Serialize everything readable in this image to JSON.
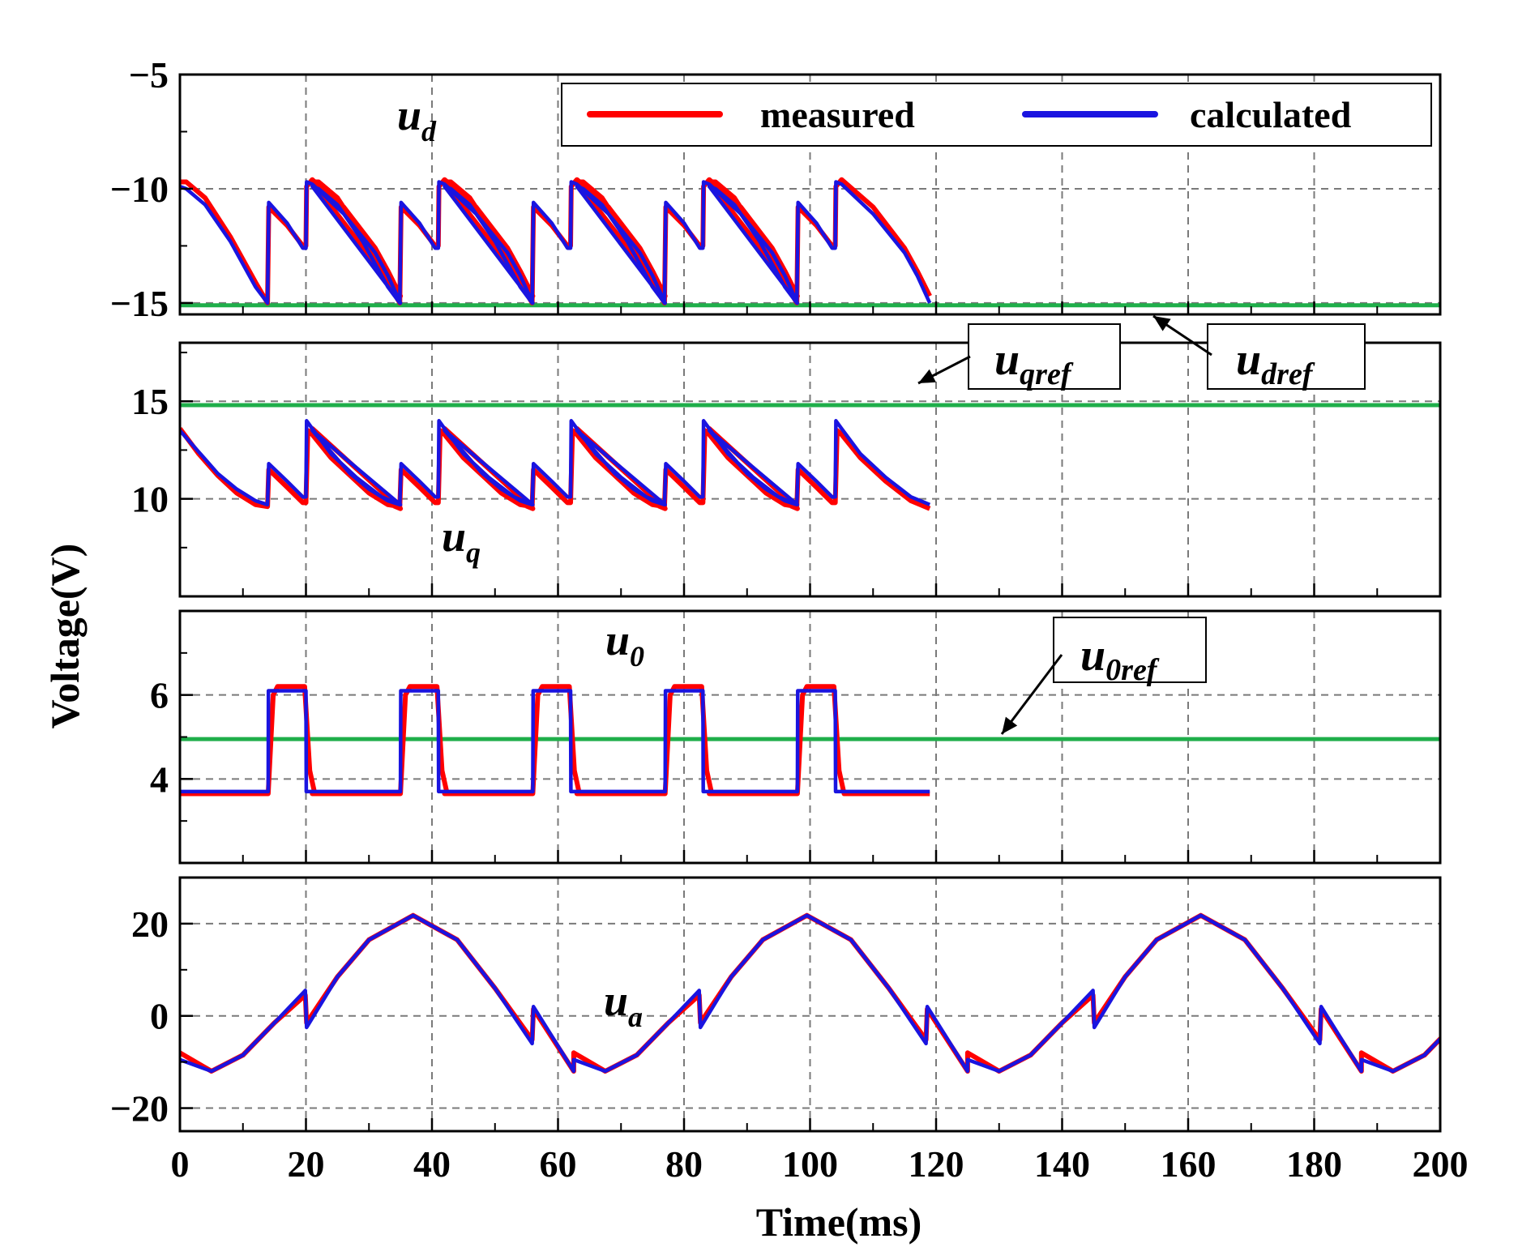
{
  "colors": {
    "measured": "#ff0000",
    "calculated": "#1a14e0",
    "reference": "#1fae4a",
    "grid": "#7a7a7a",
    "axis": "#000000"
  },
  "x_axis": {
    "label": "Time(ms)",
    "min": 0,
    "max": 200,
    "ticks": [
      0,
      20,
      40,
      60,
      80,
      100,
      120,
      140,
      160,
      180,
      200
    ]
  },
  "y_axis": {
    "label": "Voltage(V)"
  },
  "legend": {
    "measured": "measured",
    "calculated": "calculated"
  },
  "chart_data": [
    {
      "type": "line",
      "id": "ud",
      "label_base": "u",
      "label_sub": "d",
      "ylim": [
        -15.5,
        -5
      ],
      "yticks": [
        -5,
        -10,
        -15
      ],
      "ytick_labels": [
        "−5",
        "−10",
        "−15"
      ],
      "grid_y": [
        -10,
        -15
      ],
      "reference": {
        "value": -15.1,
        "label_base": "u",
        "label_sub": "dref"
      },
      "series": [
        {
          "name": "measured",
          "x": [
            0,
            1,
            4,
            8,
            12,
            13.9,
            14.1,
            17,
            19.5,
            20,
            20.1,
            21,
            26,
            31,
            33,
            35
          ],
          "y": [
            -9.7,
            -9.7,
            -10.4,
            -12.1,
            -14.1,
            -15.0,
            -10.8,
            -11.6,
            -12.5,
            -12.5,
            -9.9,
            -9.6,
            -10.8,
            -12.6,
            -13.6,
            -14.7
          ]
        },
        {
          "name": "calculated",
          "x": [
            0,
            1,
            4,
            8,
            12,
            13.9,
            14.1,
            17,
            19.5,
            20,
            20.1,
            21,
            26,
            31,
            33,
            35
          ],
          "y": [
            -9.9,
            -10.0,
            -10.7,
            -12.3,
            -14.3,
            -15.0,
            -10.6,
            -11.5,
            -12.6,
            -12.6,
            -9.7,
            -9.8,
            -11.1,
            -12.8,
            -13.8,
            -15.0
          ]
        }
      ]
    },
    {
      "type": "line",
      "id": "uq",
      "label_base": "u",
      "label_sub": "q",
      "ylim": [
        5,
        18
      ],
      "yticks": [
        10,
        15
      ],
      "ytick_labels": [
        "10",
        "15"
      ],
      "grid_y": [
        10,
        15
      ],
      "reference": {
        "value": 14.8,
        "label_base": "u",
        "label_sub": "qref"
      },
      "series": [
        {
          "name": "measured",
          "x": [
            0,
            3,
            6,
            9,
            12,
            13.9,
            14.1,
            17,
            19.5,
            20,
            20.3,
            21,
            24,
            28,
            32,
            35
          ],
          "y": [
            13.6,
            12.3,
            11.2,
            10.3,
            9.7,
            9.6,
            11.5,
            10.6,
            9.8,
            9.8,
            13.5,
            13.3,
            12.1,
            10.9,
            9.9,
            9.5
          ]
        },
        {
          "name": "calculated",
          "x": [
            0,
            3,
            6,
            9,
            12,
            13.9,
            14.1,
            17,
            19.5,
            20,
            20.1,
            21,
            24,
            28,
            32,
            35
          ],
          "y": [
            13.5,
            12.4,
            11.3,
            10.5,
            9.9,
            9.7,
            11.8,
            10.9,
            10.1,
            10.1,
            14.0,
            13.6,
            12.3,
            11.1,
            10.1,
            9.7
          ]
        }
      ]
    },
    {
      "type": "line",
      "id": "u0",
      "label_base": "u",
      "label_sub": "0",
      "ylim": [
        2,
        8
      ],
      "yticks": [
        4,
        6
      ],
      "ytick_labels": [
        "4",
        "6"
      ],
      "grid_y": [
        4,
        6
      ],
      "reference": {
        "value": 4.95,
        "label_base": "u",
        "label_sub": "0ref"
      },
      "series": [
        {
          "name": "measured",
          "x": [
            0,
            14.0,
            14.8,
            15.5,
            19.8,
            20.6,
            21.4,
            35
          ],
          "y": [
            3.65,
            3.65,
            6.0,
            6.2,
            6.2,
            4.2,
            3.65,
            3.65
          ]
        },
        {
          "name": "calculated",
          "x": [
            0,
            14.0,
            14.05,
            20.0,
            20.05,
            35
          ],
          "y": [
            3.7,
            3.7,
            6.1,
            6.1,
            3.7,
            3.7
          ]
        }
      ]
    },
    {
      "type": "line",
      "id": "ua",
      "label_base": "u",
      "label_sub": "a",
      "ylim": [
        -25,
        30
      ],
      "yticks": [
        20,
        0,
        -20
      ],
      "ytick_labels": [
        "20",
        "0",
        "−20"
      ],
      "grid_y": [
        20,
        0,
        -20
      ],
      "reference": null,
      "series": [
        {
          "name": "measured",
          "x": [
            0,
            5,
            10,
            15,
            19.9,
            20.1,
            25,
            30,
            37,
            44,
            50,
            55.9,
            56.1,
            62.5
          ],
          "y": [
            -8,
            -12,
            -8.5,
            -1.5,
            4.5,
            -1.5,
            8.5,
            16.5,
            21.8,
            16.5,
            6,
            -5.2,
            1.5,
            -12
          ]
        },
        {
          "name": "calculated",
          "x": [
            0,
            5,
            10,
            15,
            19.9,
            20.1,
            25,
            30,
            37,
            44,
            50,
            55.9,
            56.1,
            62.5
          ],
          "y": [
            -9.5,
            -12,
            -8.5,
            -1.5,
            5.5,
            -2.5,
            8.5,
            16.5,
            21.8,
            16.5,
            6,
            -6.0,
            2.0,
            -12
          ]
        }
      ]
    }
  ]
}
